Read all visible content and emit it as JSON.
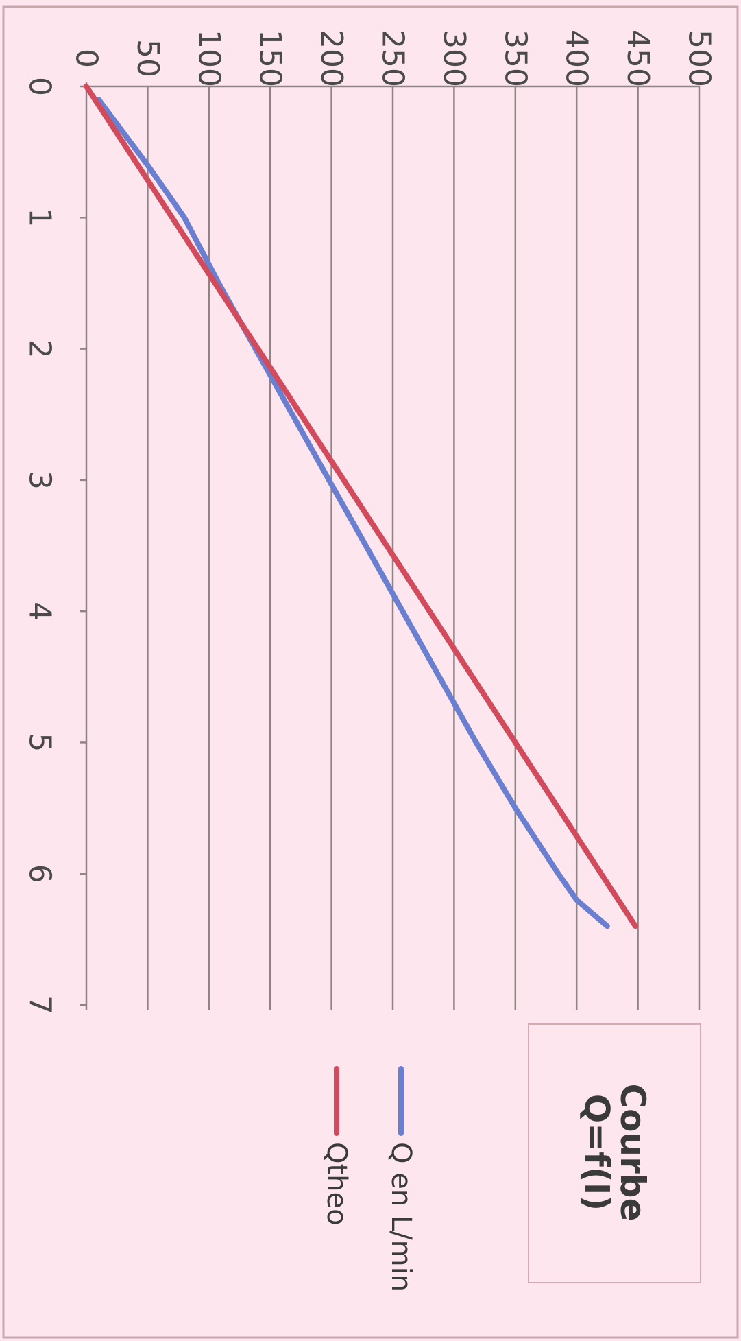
{
  "chart_data": {
    "type": "line",
    "orientation": "rotated-90-clockwise",
    "title": "Courbe Q=f(I)",
    "xlabel": "",
    "ylabel": "",
    "xlim": [
      0,
      7
    ],
    "ylim": [
      0,
      500
    ],
    "x_ticks": [
      0,
      1,
      2,
      3,
      4,
      5,
      6,
      7
    ],
    "y_ticks": [
      0,
      50,
      100,
      150,
      200,
      250,
      300,
      350,
      400,
      450,
      500
    ],
    "grid": true,
    "legend_position": "right",
    "series": [
      {
        "name": "Q en L/min",
        "color": "#6b7fd0",
        "x": [
          0.1,
          0.6,
          1.0,
          1.5,
          2.0,
          2.5,
          3.0,
          3.5,
          4.0,
          4.5,
          5.0,
          5.5,
          6.0,
          6.2,
          6.4
        ],
        "y": [
          10,
          50,
          80,
          108,
          138,
          168,
          198,
          228,
          258,
          288,
          318,
          350,
          385,
          400,
          425
        ]
      },
      {
        "name": "Qtheo",
        "color": "#d24b5c",
        "x": [
          0,
          6.4
        ],
        "y": [
          0,
          448
        ]
      }
    ]
  }
}
